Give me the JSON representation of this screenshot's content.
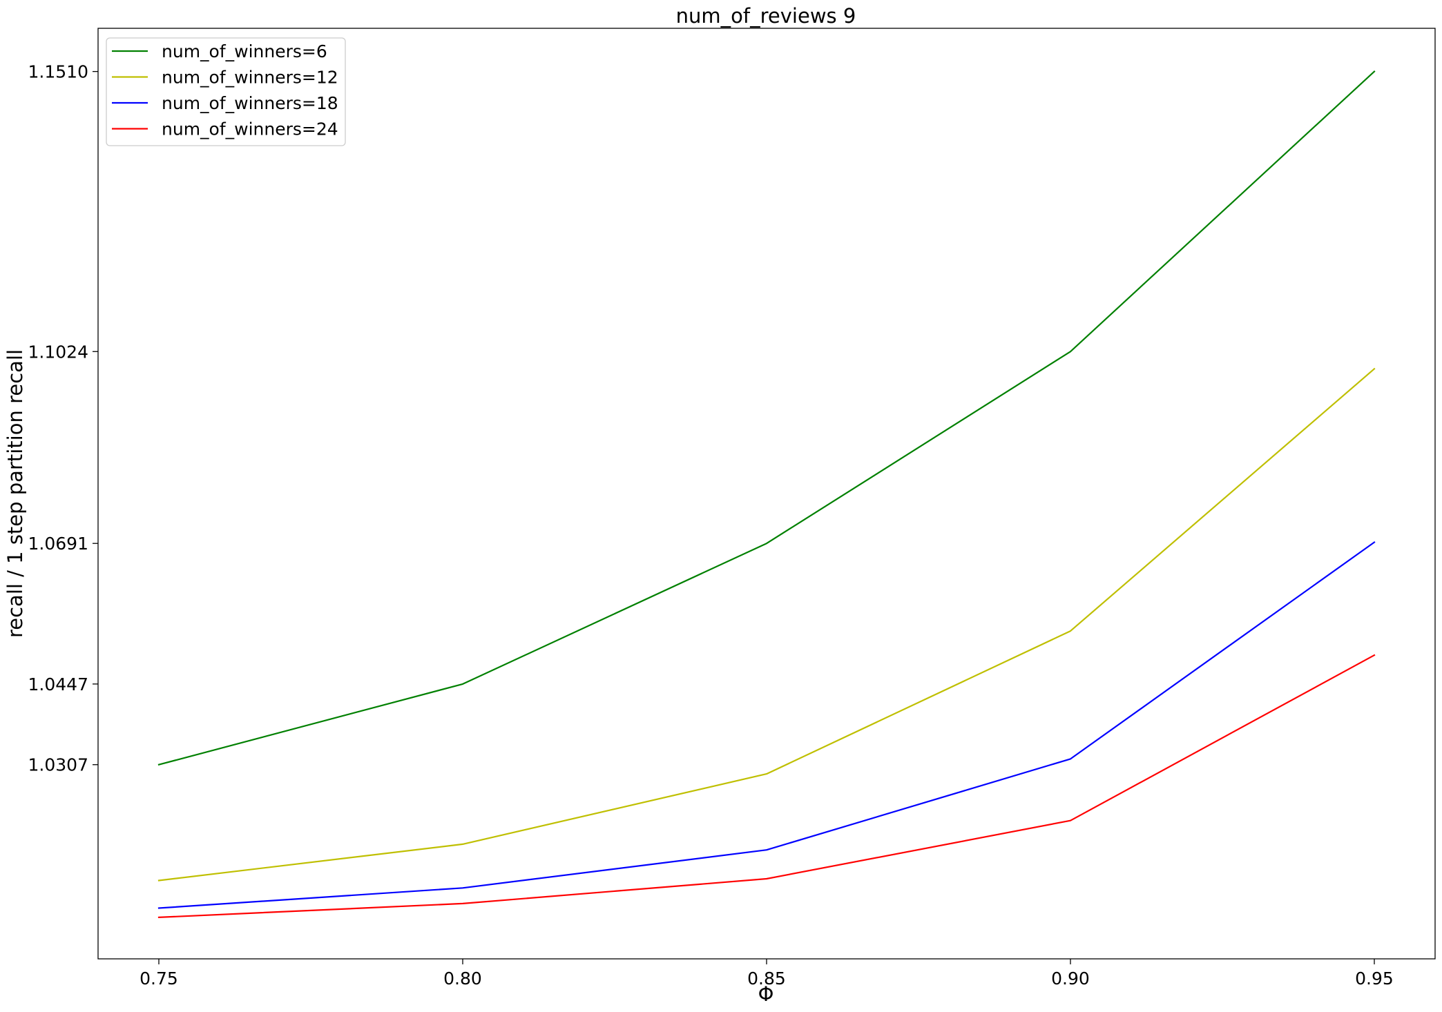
{
  "chart_data": {
    "type": "line",
    "title": "num_of_reviews 9",
    "xlabel": "Φ",
    "ylabel": "recall / 1 step partition recall",
    "x": [
      0.75,
      0.8,
      0.85,
      0.9,
      0.95
    ],
    "x_tick_labels": [
      "0.75",
      "0.80",
      "0.85",
      "0.90",
      "0.95"
    ],
    "y_ticks": [
      1.0307,
      1.0447,
      1.0691,
      1.1024,
      1.151
    ],
    "y_tick_labels": [
      "1.0307",
      "1.0447",
      "1.0691",
      "1.1024",
      "1.1510"
    ],
    "xlim": [
      0.74,
      0.96
    ],
    "ylim": [
      0.997,
      1.1585
    ],
    "grid": false,
    "legend_position": "upper left",
    "series": [
      {
        "name": "num_of_winners=6",
        "color": "#008000",
        "values": [
          1.0307,
          1.0447,
          1.0691,
          1.1024,
          1.151
        ]
      },
      {
        "name": "num_of_winners=12",
        "color": "#bfbf00",
        "values": [
          1.0106,
          1.0169,
          1.0291,
          1.0539,
          1.0994
        ]
      },
      {
        "name": "num_of_winners=18",
        "color": "#0000ff",
        "values": [
          1.0058,
          1.0093,
          1.0159,
          1.0317,
          1.0693
        ]
      },
      {
        "name": "num_of_winners=24",
        "color": "#ff0000",
        "values": [
          1.0042,
          1.0066,
          1.0109,
          1.021,
          1.0497
        ]
      }
    ]
  }
}
